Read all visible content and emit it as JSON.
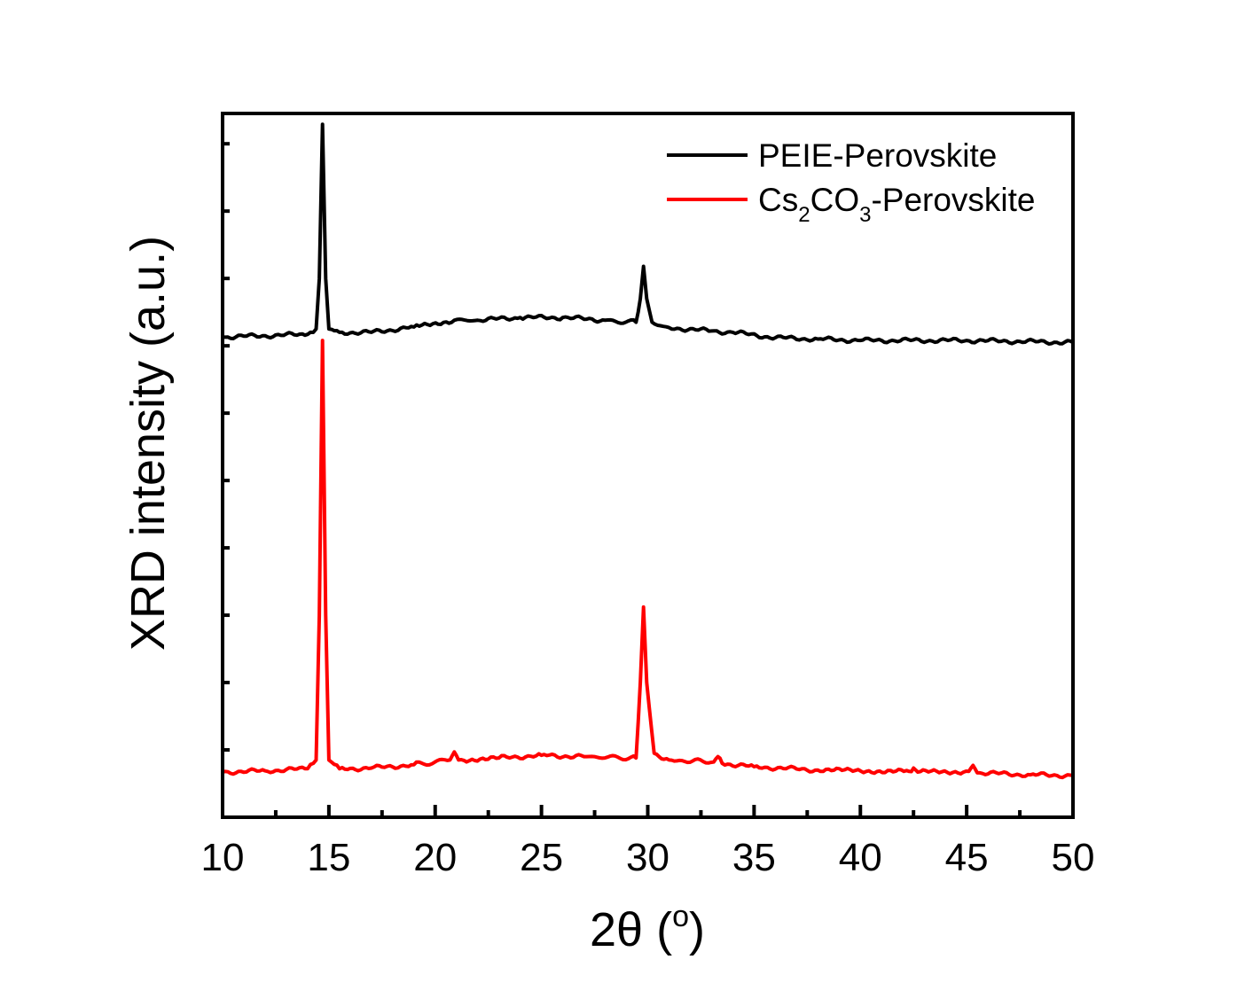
{
  "chart_data": {
    "type": "line",
    "title": "",
    "xlabel": "2θ (",
    "xlabel_degree": "o",
    "xlabel_close": ")",
    "ylabel": "XRD intensity (a.u.)",
    "xlim": [
      10,
      50
    ],
    "ylim": [
      0,
      10.45
    ],
    "xticks_major": [
      "10",
      "15",
      "20",
      "25",
      "30",
      "35",
      "40",
      "45",
      "50"
    ],
    "xticks_major_values": [
      10,
      15,
      20,
      25,
      30,
      35,
      40,
      45,
      50
    ],
    "xticks_minor_values": [
      12.5,
      17.5,
      22.5,
      27.5,
      32.5,
      37.5,
      42.5,
      47.5
    ],
    "yticks_values": [
      1,
      2,
      3,
      4,
      5,
      6,
      7,
      8,
      9,
      10
    ],
    "yticks_labeled": false,
    "grid": false,
    "legend_position": "top-right",
    "series": [
      {
        "name": "PEIE-Perovskite",
        "legend_parts": [
          "PEIE-Perovskite"
        ],
        "color": "#000000",
        "x": [
          10,
          12,
          14,
          14.4,
          14.55,
          14.7,
          14.85,
          15.0,
          15.5,
          17,
          19,
          20.9,
          22,
          24,
          26,
          28,
          29.45,
          29.65,
          29.8,
          29.95,
          30.2,
          31,
          33,
          34,
          36,
          38,
          40,
          45,
          50
        ],
        "y": [
          7.13,
          7.15,
          7.17,
          7.25,
          8.0,
          10.29,
          8.0,
          7.25,
          7.2,
          7.2,
          7.28,
          7.38,
          7.38,
          7.42,
          7.42,
          7.38,
          7.35,
          7.7,
          8.18,
          7.7,
          7.35,
          7.27,
          7.22,
          7.2,
          7.12,
          7.1,
          7.08,
          7.08,
          7.05
        ]
      },
      {
        "name": "Cs2CO3-Perovskite",
        "legend_parts": [
          "Cs",
          "2",
          "CO",
          "3",
          "-Perovskite"
        ],
        "color": "#ff0000",
        "x": [
          10,
          12,
          14,
          14.4,
          14.55,
          14.7,
          14.85,
          15.0,
          15.5,
          17,
          19,
          20.7,
          20.9,
          21.1,
          23,
          25,
          27,
          29.45,
          29.65,
          29.8,
          29.95,
          30.3,
          31,
          33.1,
          33.3,
          33.5,
          35,
          38,
          42.3,
          42.5,
          42.7,
          45.1,
          45.3,
          45.5,
          48,
          50
        ],
        "y": [
          0.67,
          0.69,
          0.72,
          0.85,
          3.0,
          7.08,
          3.0,
          0.85,
          0.72,
          0.73,
          0.78,
          0.85,
          0.97,
          0.85,
          0.88,
          0.92,
          0.9,
          0.88,
          2.0,
          3.12,
          2.0,
          0.95,
          0.85,
          0.82,
          0.9,
          0.8,
          0.75,
          0.7,
          0.68,
          0.73,
          0.67,
          0.68,
          0.77,
          0.66,
          0.63,
          0.62
        ]
      }
    ]
  }
}
